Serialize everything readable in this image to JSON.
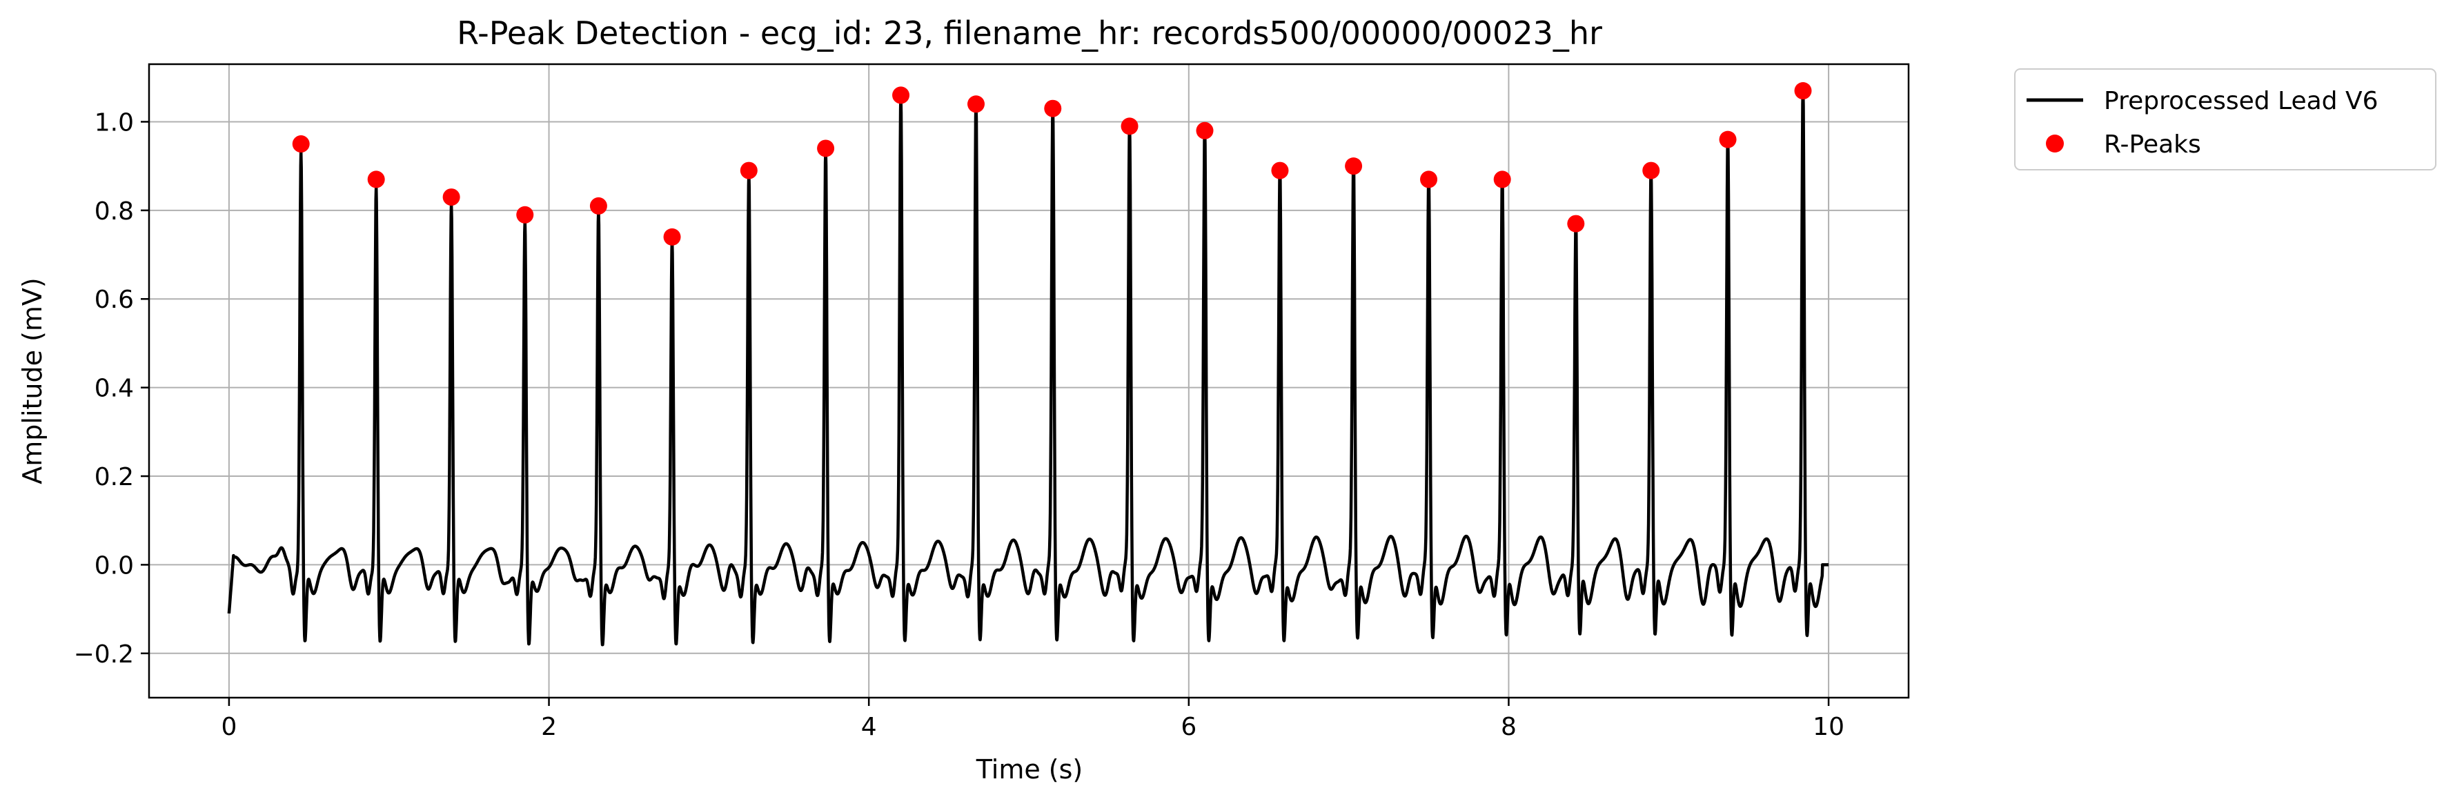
{
  "chart_data": {
    "type": "line",
    "title": "R-Peak Detection - ecg_id: 23, filename_hr: records500/00000/00023_hr",
    "xlabel": "Time (s)",
    "ylabel": "Amplitude (mV)",
    "xlim": [
      -0.5,
      10.5
    ],
    "ylim": [
      -0.3,
      1.13
    ],
    "xticks": [
      0,
      2,
      4,
      6,
      8,
      10
    ],
    "xtick_labels": [
      "0",
      "2",
      "4",
      "6",
      "8",
      "10"
    ],
    "yticks": [
      -0.2,
      0.0,
      0.2,
      0.4,
      0.6,
      0.8,
      1.0
    ],
    "ytick_labels": [
      "−0.2",
      "0.0",
      "0.2",
      "0.4",
      "0.6",
      "0.8",
      "1.0"
    ],
    "grid": true,
    "legend_position": "outside-top-right",
    "series": [
      {
        "name": "Preprocessed Lead V6",
        "kind": "line",
        "color": "#000000",
        "baseline_end_time": 10.0
      },
      {
        "name": "R-Peaks",
        "kind": "scatter",
        "color": "#ff0000",
        "points": [
          {
            "x": 0.45,
            "y": 0.95
          },
          {
            "x": 0.92,
            "y": 0.87
          },
          {
            "x": 1.39,
            "y": 0.83
          },
          {
            "x": 1.85,
            "y": 0.79
          },
          {
            "x": 2.31,
            "y": 0.81
          },
          {
            "x": 2.77,
            "y": 0.74
          },
          {
            "x": 3.25,
            "y": 0.89
          },
          {
            "x": 3.73,
            "y": 0.94
          },
          {
            "x": 4.2,
            "y": 1.06
          },
          {
            "x": 4.67,
            "y": 1.04
          },
          {
            "x": 5.15,
            "y": 1.03
          },
          {
            "x": 5.63,
            "y": 0.99
          },
          {
            "x": 6.1,
            "y": 0.98
          },
          {
            "x": 6.57,
            "y": 0.89
          },
          {
            "x": 7.03,
            "y": 0.9
          },
          {
            "x": 7.5,
            "y": 0.87
          },
          {
            "x": 7.96,
            "y": 0.87
          },
          {
            "x": 8.42,
            "y": 0.77
          },
          {
            "x": 8.89,
            "y": 0.89
          },
          {
            "x": 9.37,
            "y": 0.96
          },
          {
            "x": 9.84,
            "y": 1.07
          }
        ]
      }
    ]
  }
}
